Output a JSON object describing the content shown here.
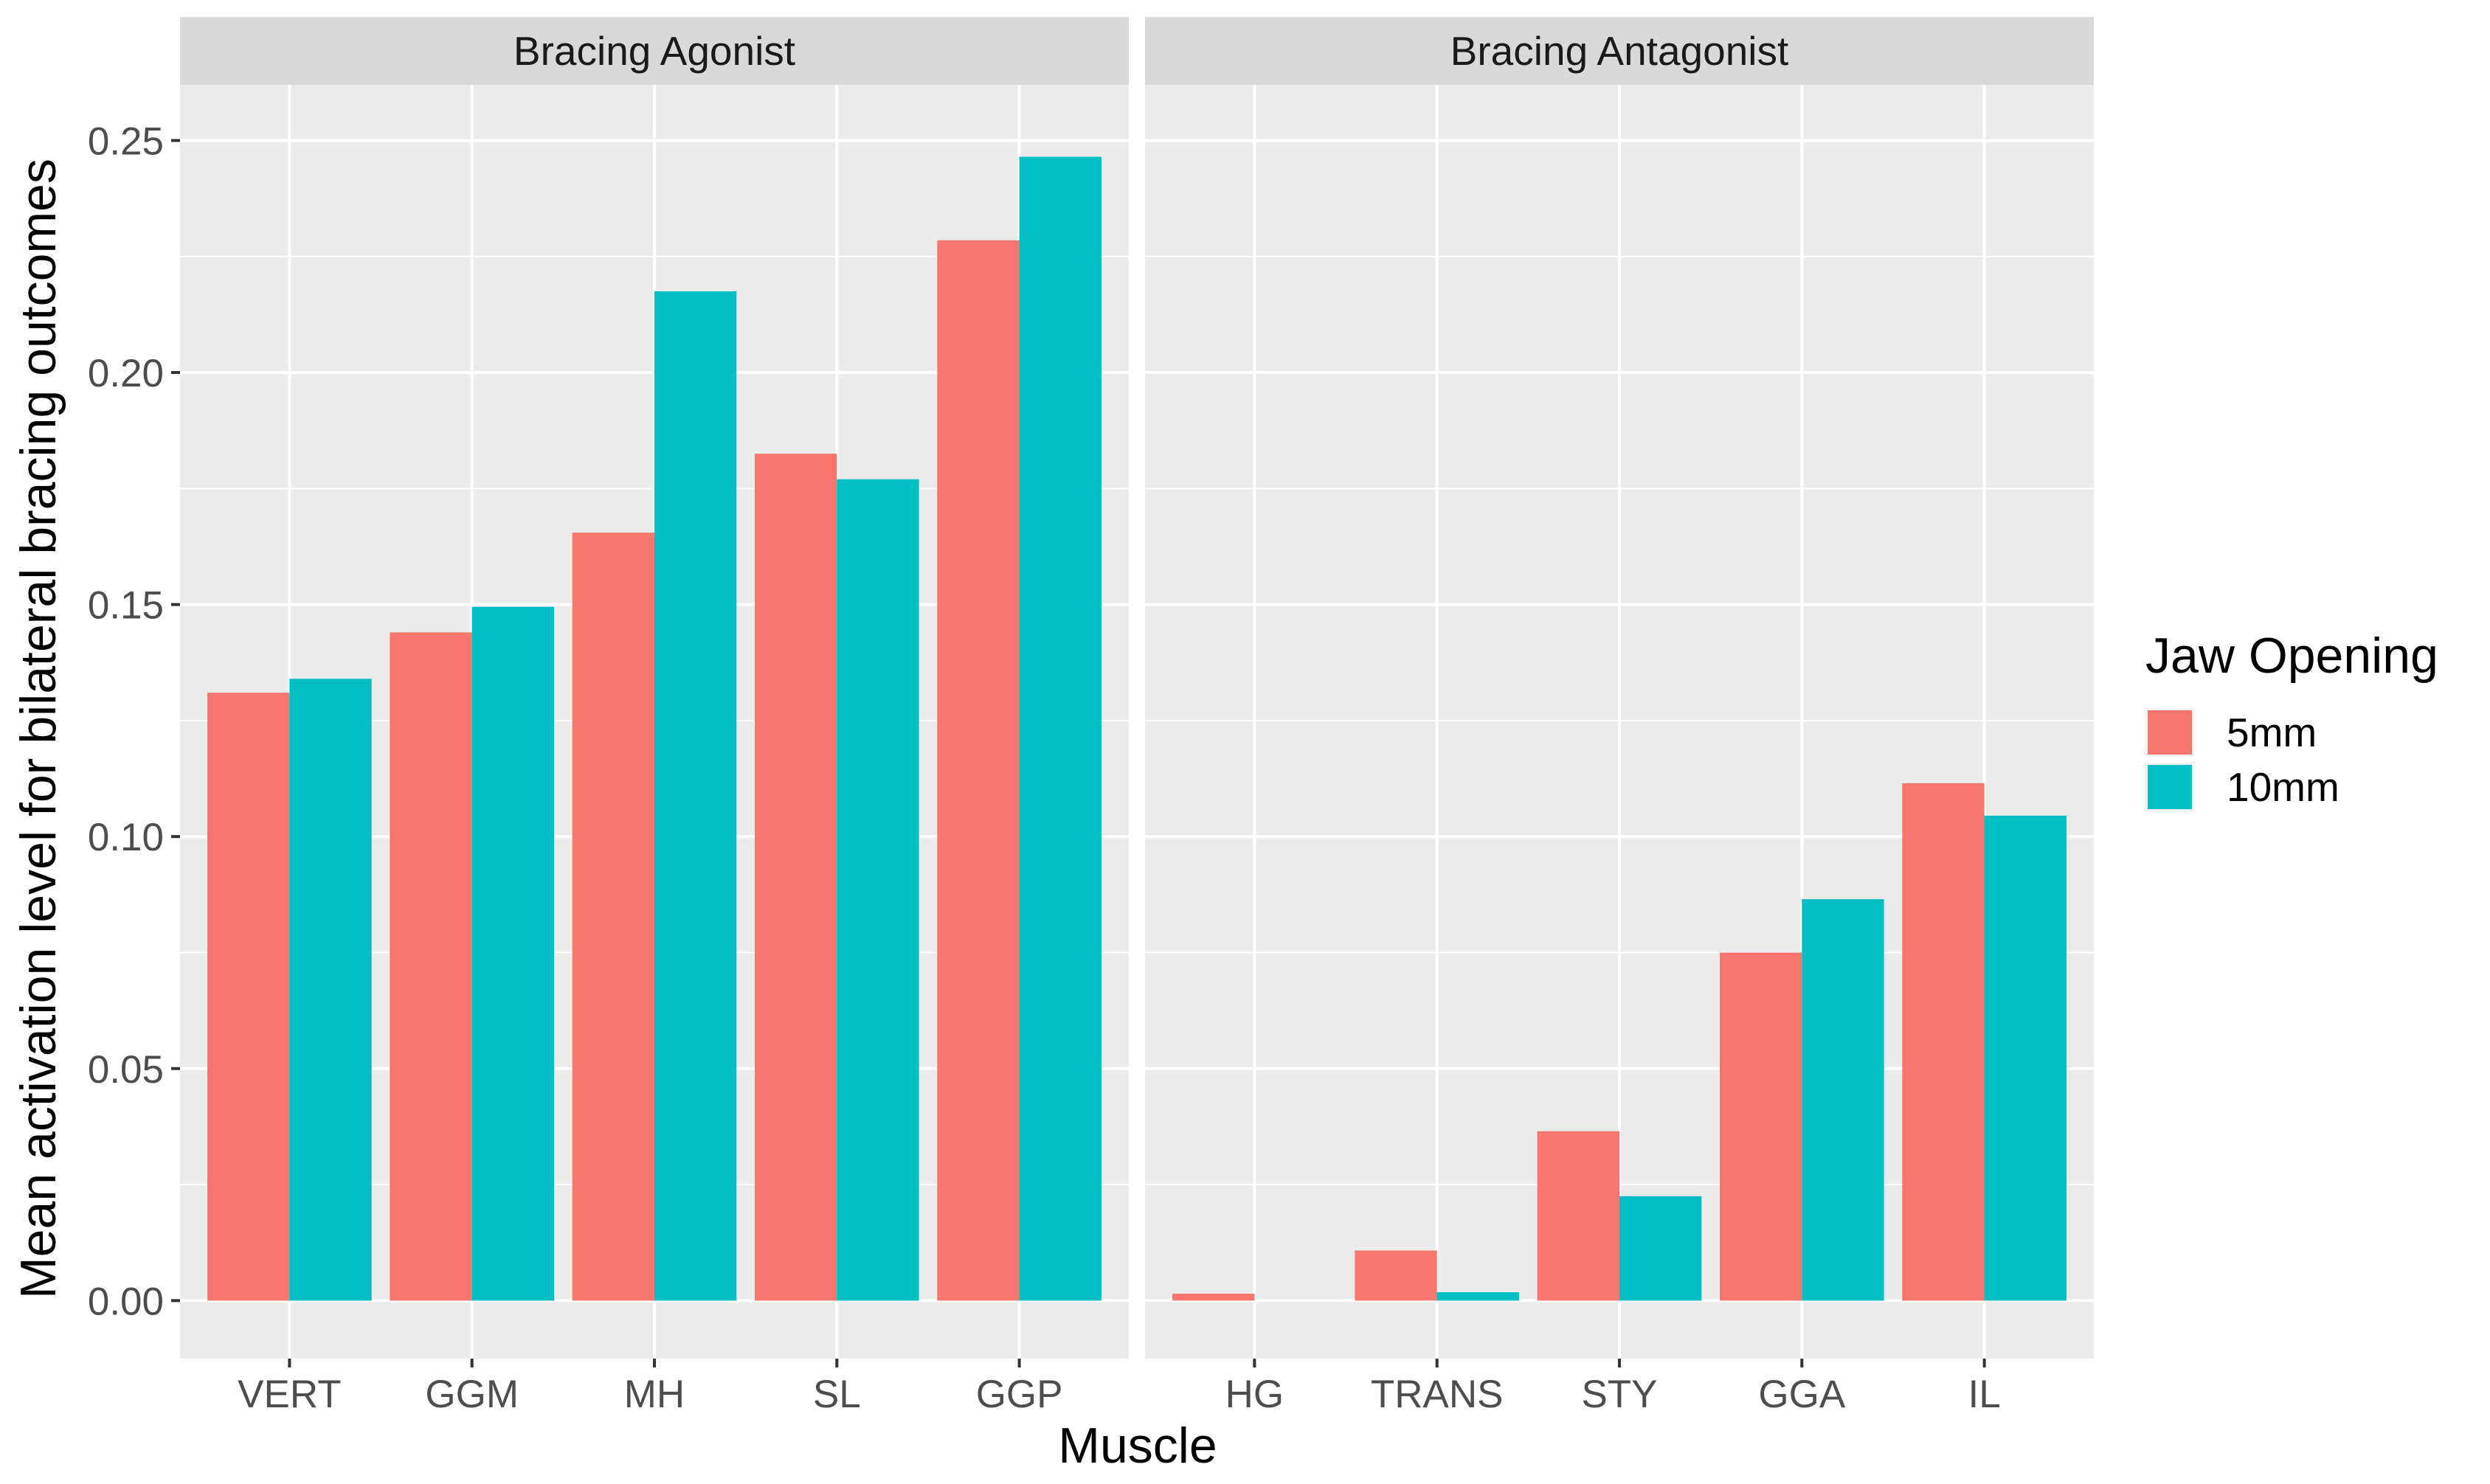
{
  "chart_data": {
    "type": "bar",
    "xlabel": "Muscle",
    "ylabel": "Mean activation level for bilateral bracing outcomes",
    "ylim": [
      -0.0125,
      0.262
    ],
    "yticks": [
      "0.00",
      "0.05",
      "0.10",
      "0.15",
      "0.20",
      "0.25"
    ],
    "ytick_values": [
      0.0,
      0.05,
      0.1,
      0.15,
      0.2,
      0.25
    ],
    "grid": true,
    "legend": {
      "title": "Jaw Opening",
      "placement": "right",
      "entries": [
        "5mm",
        "10mm"
      ]
    },
    "colors": {
      "5mm": "#F8766D",
      "10mm": "#00BFC4",
      "panel_bg": "#EBEBEB",
      "strip_bg": "#D9D9D9",
      "grid": "#FFFFFF"
    },
    "facets": [
      {
        "title": "Bracing Agonist",
        "categories": [
          "VERT",
          "GGM",
          "MH",
          "SL",
          "GGP"
        ],
        "series": [
          {
            "name": "5mm",
            "values": [
              0.131,
              0.144,
              0.1655,
              0.1825,
              0.2285
            ]
          },
          {
            "name": "10mm",
            "values": [
              0.134,
              0.1495,
              0.2175,
              0.177,
              0.2465
            ]
          }
        ]
      },
      {
        "title": "Bracing Antagonist",
        "categories": [
          "HG",
          "TRANS",
          "STY",
          "GGA",
          "IL"
        ],
        "series": [
          {
            "name": "5mm",
            "values": [
              0.0015,
              0.0108,
              0.0365,
              0.075,
              0.1115
            ]
          },
          {
            "name": "10mm",
            "values": [
              0.0,
              0.0018,
              0.0225,
              0.0865,
              0.1045
            ]
          }
        ]
      }
    ]
  }
}
